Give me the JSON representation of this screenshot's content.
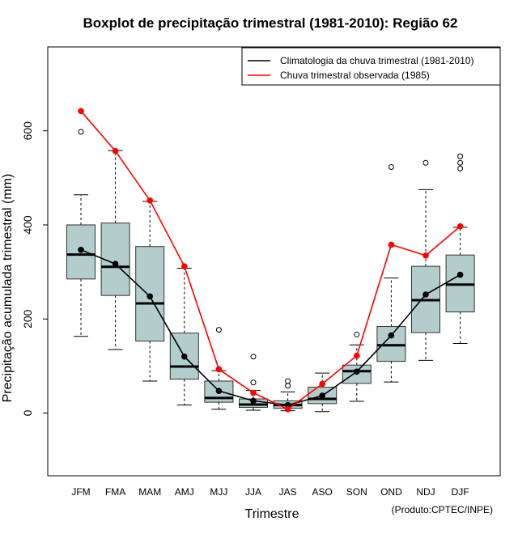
{
  "chart_data": {
    "type": "boxplot",
    "title": "Boxplot de precipitação trimestral (1981-2010): Região 62",
    "xlabel": "Trimestre",
    "ylabel": "Precipitação acumulada trimestral (mm)",
    "credit": "(Produto:CPTEC/INPE)",
    "ylim": [
      -130,
      770
    ],
    "yticks": [
      0,
      200,
      400,
      600
    ],
    "yticks_text": [
      "0",
      "200",
      "400",
      "600"
    ],
    "categories": [
      "JFM",
      "FMA",
      "MAM",
      "AMJ",
      "MJJ",
      "JJA",
      "JAS",
      "ASO",
      "SON",
      "OND",
      "NDJ",
      "DJF"
    ],
    "boxes": [
      {
        "whisker_low": 163,
        "q1": 285,
        "median": 337,
        "q3": 400,
        "whisker_high": 464,
        "outliers": [
          598
        ]
      },
      {
        "whisker_low": 135,
        "q1": 250,
        "median": 311,
        "q3": 404,
        "whisker_high": 558,
        "outliers": []
      },
      {
        "whisker_low": 68,
        "q1": 153,
        "median": 233,
        "q3": 354,
        "whisker_high": 450,
        "outliers": []
      },
      {
        "whisker_low": 17,
        "q1": 72,
        "median": 99,
        "q3": 170,
        "whisker_high": 308,
        "outliers": []
      },
      {
        "whisker_low": 8,
        "q1": 23,
        "median": 32,
        "q3": 68,
        "whisker_high": 90,
        "outliers": [
          177
        ]
      },
      {
        "whisker_low": 6,
        "q1": 12,
        "median": 18,
        "q3": 30,
        "whisker_high": 48,
        "outliers": [
          65,
          120
        ]
      },
      {
        "whisker_low": 5,
        "q1": 10,
        "median": 17,
        "q3": 26,
        "whisker_high": 45,
        "outliers": [
          58,
          68
        ]
      },
      {
        "whisker_low": 3,
        "q1": 20,
        "median": 30,
        "q3": 55,
        "whisker_high": 85,
        "outliers": []
      },
      {
        "whisker_low": 25,
        "q1": 63,
        "median": 89,
        "q3": 102,
        "whisker_high": 145,
        "outliers": [
          167
        ]
      },
      {
        "whisker_low": 66,
        "q1": 110,
        "median": 144,
        "q3": 184,
        "whisker_high": 287,
        "outliers": [
          523
        ]
      },
      {
        "whisker_low": 112,
        "q1": 171,
        "median": 240,
        "q3": 312,
        "whisker_high": 475,
        "outliers": [
          532
        ]
      },
      {
        "whisker_low": 148,
        "q1": 215,
        "median": 273,
        "q3": 336,
        "whisker_high": 395,
        "outliers": [
          520,
          532,
          546
        ]
      }
    ],
    "series": [
      {
        "name": "Climatologia da chuva trimestral (1981-2010)",
        "color": "#000000",
        "values": [
          347,
          317,
          248,
          120,
          47,
          26,
          17,
          37,
          88,
          165,
          252,
          294
        ]
      },
      {
        "name": "Chuva trimestral observada (1985)",
        "color": "#ff0000",
        "values": [
          642,
          557,
          452,
          312,
          93,
          43,
          8,
          62,
          122,
          358,
          335,
          397
        ]
      }
    ],
    "legend_position": "top-right",
    "box_fill": "#b3cccc"
  }
}
